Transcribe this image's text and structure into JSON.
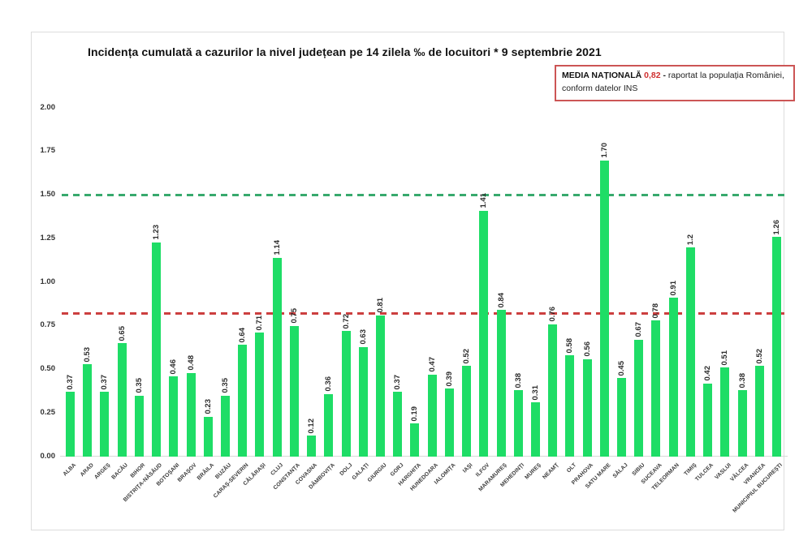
{
  "page": {
    "title": "Incidența cumulată a cazurilor la nivel județean pe 14 zilela ‰ de locuitori * 9 septembrie 2021"
  },
  "national_average_box": {
    "label": "MEDIA NAȚIONALĂ",
    "value": "0,82",
    "separator": "-",
    "description": "raportat la populația României,",
    "description_line2": "conform datelor INS"
  },
  "chart_data": {
    "type": "bar",
    "title": "Incidența cumulată a cazurilor la nivel județean pe 14 zilela ‰ de locuitori * 9 septembrie 2021",
    "xlabel": "",
    "ylabel": "",
    "ylim": [
      0,
      2.0
    ],
    "grid": false,
    "bar_color": "#1edd66",
    "yticks": [
      "0.00",
      "0.25",
      "0.50",
      "0.75",
      "1.00",
      "1.25",
      "1.50",
      "1.75",
      "2.00"
    ],
    "categories": [
      "ALBA",
      "ARAD",
      "ARGEȘ",
      "BACĂU",
      "BIHOR",
      "BISTRIȚA-NĂSĂUD",
      "BOTOȘANI",
      "BRAȘOV",
      "BRĂILA",
      "BUZĂU",
      "CARAȘ-SEVERIN",
      "CĂLĂRAȘI",
      "CLUJ",
      "CONSTANȚA",
      "COVASNA",
      "DÂMBOVIȚA",
      "DOLJ",
      "GALAȚI",
      "GIURGIU",
      "GORJ",
      "HARGHITA",
      "HUNEDOARA",
      "IALOMIȚA",
      "IAȘI",
      "ILFOV",
      "MARAMUREȘ",
      "MEHEDINȚI",
      "MUREȘ",
      "NEAMȚ",
      "OLT",
      "PRAHOVA",
      "SATU MARE",
      "SĂLAJ",
      "SIBIU",
      "SUCEAVA",
      "TELEORMAN",
      "TIMIȘ",
      "TULCEA",
      "VASLUI",
      "VÂLCEA",
      "VRANCEA",
      "MUNICIPIUL BUCUREȘTI"
    ],
    "values": [
      0.37,
      0.53,
      0.37,
      0.65,
      0.35,
      1.23,
      0.46,
      0.48,
      0.23,
      0.35,
      0.64,
      0.71,
      1.14,
      0.75,
      0.12,
      0.36,
      0.72,
      0.63,
      0.81,
      0.37,
      0.19,
      0.47,
      0.39,
      0.52,
      1.41,
      0.84,
      0.38,
      0.31,
      0.76,
      0.58,
      0.56,
      1.7,
      0.45,
      0.67,
      0.78,
      0.91,
      1.2,
      0.42,
      0.51,
      0.38,
      0.52,
      1.26
    ],
    "value_labels": [
      "0.37",
      "0.53",
      "0.37",
      "0.65",
      "0.35",
      "1.23",
      "0.46",
      "0.48",
      "0.23",
      "0.35",
      "0.64",
      "0.71",
      "1.14",
      "0.75",
      "0.12",
      "0.36",
      "0.72",
      "0.63",
      "0.81",
      "0.37",
      "0.19",
      "0.47",
      "0.39",
      "0.52",
      "1.41",
      "0.84",
      "0.38",
      "0.31",
      "0.76",
      "0.58",
      "0.56",
      "1.70",
      "0.45",
      "0.67",
      "0.78",
      "0.91",
      "1.2",
      "0.42",
      "0.51",
      "0.38",
      "0.52",
      "1.26"
    ],
    "reference_lines": [
      {
        "y": 1.5,
        "color": "#38a96d",
        "style": "dashed"
      },
      {
        "y": 0.82,
        "color": "#cc3f3f",
        "style": "dashed"
      }
    ]
  }
}
